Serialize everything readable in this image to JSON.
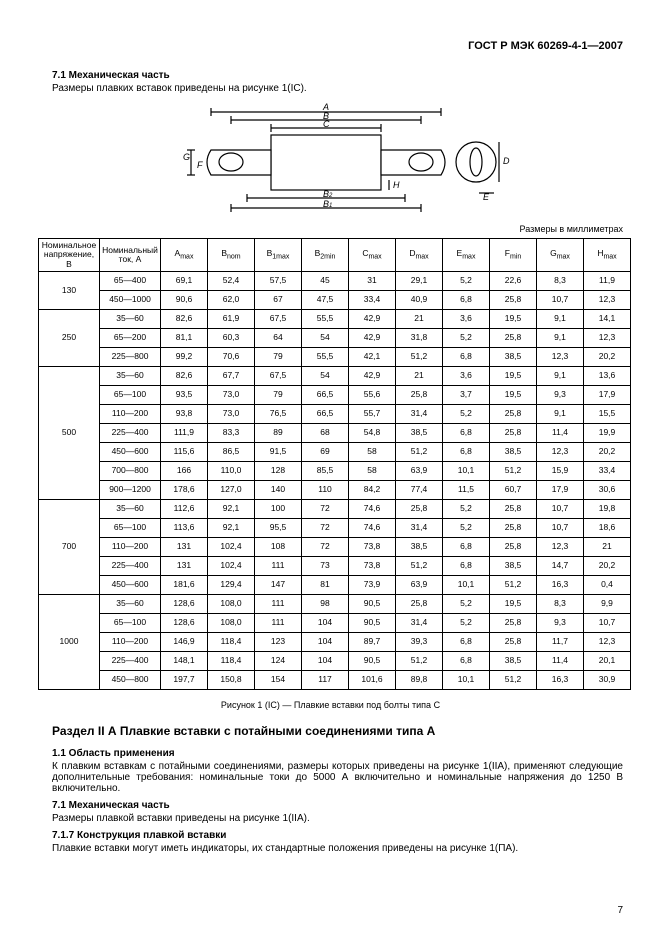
{
  "header": {
    "doc_id": "ГОСТ Р МЭК 60269-4-1—2007"
  },
  "sec71": {
    "num_title": "7.1  Механическая часть",
    "text": "Размеры плавких вставок приведены на рисунке 1(IС)."
  },
  "units_note": "Размеры в миллиметрах",
  "columns": {
    "c0": "Номинальное напряжение, В",
    "c1": "Номинальный ток, А",
    "c2_pre": "A",
    "c2_sub": "max",
    "c3_pre": "B",
    "c3_sub": "nom",
    "c4_pre": "B",
    "c4_sub": "1max",
    "c5_pre": "B",
    "c5_sub": "2min",
    "c6_pre": "C",
    "c6_sub": "max",
    "c7_pre": "D",
    "c7_sub": "max",
    "c8_pre": "E",
    "c8_sub": "max",
    "c9_pre": "F",
    "c9_sub": "min",
    "c10_pre": "G",
    "c10_sub": "max",
    "c11_pre": "H",
    "c11_sub": "max"
  },
  "groups": [
    {
      "voltage": "130",
      "rows": [
        {
          "cur": "65—400",
          "v": [
            "69,1",
            "52,4",
            "57,5",
            "45",
            "31",
            "29,1",
            "5,2",
            "22,6",
            "8,3",
            "11,9"
          ]
        },
        {
          "cur": "450—1000",
          "v": [
            "90,6",
            "62,0",
            "67",
            "47,5",
            "33,4",
            "40,9",
            "6,8",
            "25,8",
            "10,7",
            "12,3"
          ]
        }
      ]
    },
    {
      "voltage": "250",
      "rows": [
        {
          "cur": "35—60",
          "v": [
            "82,6",
            "61,9",
            "67,5",
            "55,5",
            "42,9",
            "21",
            "3,6",
            "19,5",
            "9,1",
            "14,1"
          ]
        },
        {
          "cur": "65—200",
          "v": [
            "81,1",
            "60,3",
            "64",
            "54",
            "42,9",
            "31,8",
            "5,2",
            "25,8",
            "9,1",
            "12,3"
          ]
        },
        {
          "cur": "225—800",
          "v": [
            "99,2",
            "70,6",
            "79",
            "55,5",
            "42,1",
            "51,2",
            "6,8",
            "38,5",
            "12,3",
            "20,2"
          ]
        }
      ]
    },
    {
      "voltage": "500",
      "rows": [
        {
          "cur": "35—60",
          "v": [
            "82,6",
            "67,7",
            "67,5",
            "54",
            "42,9",
            "21",
            "3,6",
            "19,5",
            "9,1",
            "13,6"
          ]
        },
        {
          "cur": "65—100",
          "v": [
            "93,5",
            "73,0",
            "79",
            "66,5",
            "55,6",
            "25,8",
            "3,7",
            "19,5",
            "9,3",
            "17,9"
          ]
        },
        {
          "cur": "110—200",
          "v": [
            "93,8",
            "73,0",
            "76,5",
            "66,5",
            "55,7",
            "31,4",
            "5,2",
            "25,8",
            "9,1",
            "15,5"
          ]
        },
        {
          "cur": "225—400",
          "v": [
            "111,9",
            "83,3",
            "89",
            "68",
            "54,8",
            "38,5",
            "6,8",
            "25,8",
            "11,4",
            "19,9"
          ]
        },
        {
          "cur": "450—600",
          "v": [
            "115,6",
            "86,5",
            "91,5",
            "69",
            "58",
            "51,2",
            "6,8",
            "38,5",
            "12,3",
            "20,2"
          ]
        },
        {
          "cur": "700—800",
          "v": [
            "166",
            "110,0",
            "128",
            "85,5",
            "58",
            "63,9",
            "10,1",
            "51,2",
            "15,9",
            "33,4"
          ]
        },
        {
          "cur": "900—1200",
          "v": [
            "178,6",
            "127,0",
            "140",
            "110",
            "84,2",
            "77,4",
            "11,5",
            "60,7",
            "17,9",
            "30,6"
          ]
        }
      ]
    },
    {
      "voltage": "700",
      "rows": [
        {
          "cur": "35—60",
          "v": [
            "112,6",
            "92,1",
            "100",
            "72",
            "74,6",
            "25,8",
            "5,2",
            "25,8",
            "10,7",
            "19,8"
          ]
        },
        {
          "cur": "65—100",
          "v": [
            "113,6",
            "92,1",
            "95,5",
            "72",
            "74,6",
            "31,4",
            "5,2",
            "25,8",
            "10,7",
            "18,6"
          ]
        },
        {
          "cur": "110—200",
          "v": [
            "131",
            "102,4",
            "108",
            "72",
            "73,8",
            "38,5",
            "6,8",
            "25,8",
            "12,3",
            "21"
          ]
        },
        {
          "cur": "225—400",
          "v": [
            "131",
            "102,4",
            "111",
            "73",
            "73,8",
            "51,2",
            "6,8",
            "38,5",
            "14,7",
            "20,2"
          ]
        },
        {
          "cur": "450—600",
          "v": [
            "181,6",
            "129,4",
            "147",
            "81",
            "73,9",
            "63,9",
            "10,1",
            "51,2",
            "16,3",
            "0,4"
          ]
        }
      ]
    },
    {
      "voltage": "1000",
      "rows": [
        {
          "cur": "35—60",
          "v": [
            "128,6",
            "108,0",
            "111",
            "98",
            "90,5",
            "25,8",
            "5,2",
            "19,5",
            "8,3",
            "9,9"
          ]
        },
        {
          "cur": "65—100",
          "v": [
            "128,6",
            "108,0",
            "111",
            "104",
            "90,5",
            "31,4",
            "5,2",
            "25,8",
            "9,3",
            "10,7"
          ]
        },
        {
          "cur": "110—200",
          "v": [
            "146,9",
            "118,4",
            "123",
            "104",
            "89,7",
            "39,3",
            "6,8",
            "25,8",
            "11,7",
            "12,3"
          ]
        },
        {
          "cur": "225—400",
          "v": [
            "148,1",
            "118,4",
            "124",
            "104",
            "90,5",
            "51,2",
            "6,8",
            "38,5",
            "11,4",
            "20,1"
          ]
        },
        {
          "cur": "450—800",
          "v": [
            "197,7",
            "150,8",
            "154",
            "117",
            "101,6",
            "89,8",
            "10,1",
            "51,2",
            "16,3",
            "30,9"
          ]
        }
      ]
    }
  ],
  "fig_caption": "Рисунок 1 (IС) — Плавкие вставки под болты типа С",
  "section2a": {
    "title": "Раздел II А  Плавкие вставки с потайными соединениями типа А"
  },
  "s11": {
    "num_title": "1.1  Область применения",
    "p1": "К плавким вставкам с потайными соединениями, размеры которых приведены на рисунке 1(IIА), применяют следующие дополнительные требования: номинальные токи до 5000 А включительно и номинальные напряжения до 1250 В включительно."
  },
  "s71b": {
    "num_title": "7.1  Механическая часть",
    "p1": "Размеры плавкой вставки приведены на рисунке 1(IIА)."
  },
  "s717": {
    "num_title": "7.1.7  Конструкция плавкой вставки",
    "p1": "Плавкие вставки могут иметь индикаторы, их стандартные положения приведены на рисунке 1(ПА)."
  },
  "page_num": "7"
}
